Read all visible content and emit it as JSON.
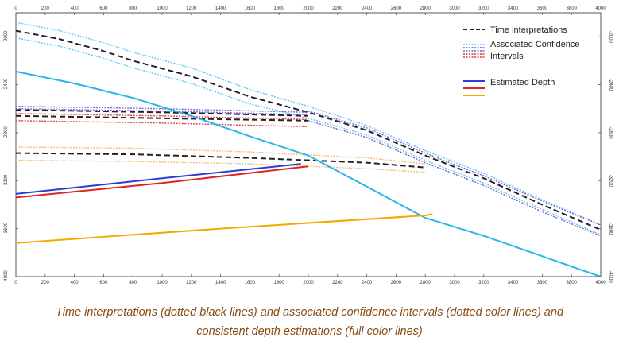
{
  "chart_data": {
    "type": "line",
    "xlim": [
      0,
      4000
    ],
    "ylim": [
      1800,
      4000
    ],
    "x_ticks": [
      "0",
      "200",
      "400",
      "600",
      "800",
      "1000",
      "1200",
      "1400",
      "1600",
      "1800",
      "2000",
      "2200",
      "2400",
      "2600",
      "2800",
      "3000",
      "3200",
      "3400",
      "3600",
      "3800",
      "4000"
    ],
    "y_ticks_left": [
      "-2000",
      "-2400",
      "-2800",
      "-3200",
      "-3600",
      "-4000"
    ],
    "y_ticks_right": [
      "-2000",
      "-2400",
      "-2800",
      "-3200",
      "-3600",
      "-4000"
    ],
    "grid": false,
    "legend_position": "top-right",
    "legend": {
      "time": "Time interpretations",
      "conf_line1": "Associated Confidence",
      "conf_line2": "Intervals",
      "depth": "Estimated Depth"
    },
    "colors": {
      "time": "#222222",
      "conf_blue_light": "#5bc8f0",
      "conf_blue": "#4a66d8",
      "conf_purple": "#7a5ed8",
      "conf_red": "#e23a3a",
      "conf_orange": "#f5b870",
      "depth_cyan": "#29b6ea",
      "depth_blue": "#2a3cd8",
      "depth_red": "#e02424",
      "depth_orange": "#f5a800"
    },
    "series": [
      {
        "kind": "time",
        "style": "dashed",
        "color": "time",
        "x": [
          0,
          300,
          600,
          800,
          1200,
          1600,
          2000,
          2400,
          2800,
          3200,
          3600,
          4000
        ],
        "y": [
          1950,
          2020,
          2120,
          2200,
          2330,
          2500,
          2630,
          2780,
          2990,
          3180,
          3400,
          3610
        ]
      },
      {
        "kind": "confidence",
        "style": "dotted",
        "color": "conf_blue_light",
        "x": [
          0,
          300,
          600,
          800,
          1200,
          1600,
          2000,
          2400,
          2800,
          3200,
          3600,
          4000
        ],
        "y": [
          1880,
          1950,
          2050,
          2130,
          2260,
          2440,
          2580,
          2740,
          2950,
          3140,
          3360,
          3570
        ]
      },
      {
        "kind": "confidence",
        "style": "dotted",
        "color": "conf_blue_light",
        "x": [
          0,
          300,
          600,
          800,
          1200,
          1600,
          2000,
          2400,
          2800,
          3200,
          3600,
          4000
        ],
        "y": [
          2010,
          2080,
          2180,
          2260,
          2390,
          2560,
          2680,
          2820,
          3030,
          3220,
          3440,
          3650
        ]
      },
      {
        "kind": "confidence",
        "style": "dotted",
        "color": "conf_purple",
        "x": [
          2000,
          2400,
          2800,
          3200,
          3600,
          4000
        ],
        "y": [
          2620,
          2760,
          2970,
          3160,
          3370,
          3570
        ]
      },
      {
        "kind": "confidence",
        "style": "dotted",
        "color": "conf_purple",
        "x": [
          2000,
          2400,
          2800,
          3200,
          3600,
          4000
        ],
        "y": [
          2700,
          2840,
          3050,
          3240,
          3460,
          3660
        ]
      },
      {
        "kind": "time",
        "style": "dashed",
        "color": "time",
        "x": [
          0,
          1000,
          2000
        ],
        "y": [
          2610,
          2630,
          2660
        ]
      },
      {
        "kind": "time",
        "style": "dashed",
        "color": "time",
        "x": [
          0,
          1000,
          2000
        ],
        "y": [
          2660,
          2680,
          2700
        ]
      },
      {
        "kind": "confidence",
        "style": "dotted",
        "color": "conf_purple",
        "x": [
          0,
          1000,
          2000
        ],
        "y": [
          2580,
          2600,
          2630
        ]
      },
      {
        "kind": "confidence",
        "style": "dotted",
        "color": "conf_purple",
        "x": [
          0,
          1000,
          2000
        ],
        "y": [
          2600,
          2620,
          2650
        ]
      },
      {
        "kind": "confidence",
        "style": "dotted",
        "color": "conf_red",
        "x": [
          0,
          1000,
          2000
        ],
        "y": [
          2640,
          2660,
          2690
        ]
      },
      {
        "kind": "confidence",
        "style": "dotted",
        "color": "conf_red",
        "x": [
          0,
          1000,
          2000
        ],
        "y": [
          2700,
          2720,
          2750
        ]
      },
      {
        "kind": "time",
        "style": "dashed",
        "color": "time",
        "x": [
          0,
          800,
          1600,
          2400,
          2800
        ],
        "y": [
          2970,
          2980,
          3010,
          3050,
          3090
        ]
      },
      {
        "kind": "confidence",
        "style": "dotted",
        "color": "conf_orange",
        "x": [
          0,
          800,
          1600,
          2400,
          2800
        ],
        "y": [
          2920,
          2930,
          2960,
          3010,
          3060
        ]
      },
      {
        "kind": "confidence",
        "style": "dotted",
        "color": "conf_orange",
        "x": [
          0,
          800,
          1600,
          2400,
          2800
        ],
        "y": [
          3030,
          3040,
          3060,
          3100,
          3130
        ]
      },
      {
        "kind": "depth",
        "style": "solid",
        "color": "depth_cyan",
        "x": [
          0,
          400,
          800,
          1200,
          1600,
          2000,
          2400,
          2800,
          3200,
          3600,
          4000
        ],
        "y": [
          2290,
          2390,
          2510,
          2660,
          2830,
          2990,
          3250,
          3510,
          3660,
          3830,
          4000
        ]
      },
      {
        "kind": "depth",
        "style": "solid",
        "color": "depth_blue",
        "x": [
          0,
          1000,
          1950
        ],
        "y": [
          3310,
          3180,
          3060
        ]
      },
      {
        "kind": "depth",
        "style": "solid",
        "color": "depth_red",
        "x": [
          0,
          1000,
          2000
        ],
        "y": [
          3340,
          3220,
          3080
        ]
      },
      {
        "kind": "depth",
        "style": "solid",
        "color": "depth_orange",
        "x": [
          0,
          1400,
          2800,
          2850
        ],
        "y": [
          3720,
          3600,
          3490,
          3480
        ]
      }
    ]
  },
  "caption_line1": "Time interpretations (dotted black lines) and associated confidence intervals (dotted color lines) and",
  "caption_line2": "consistent depth estimations (full color lines)"
}
